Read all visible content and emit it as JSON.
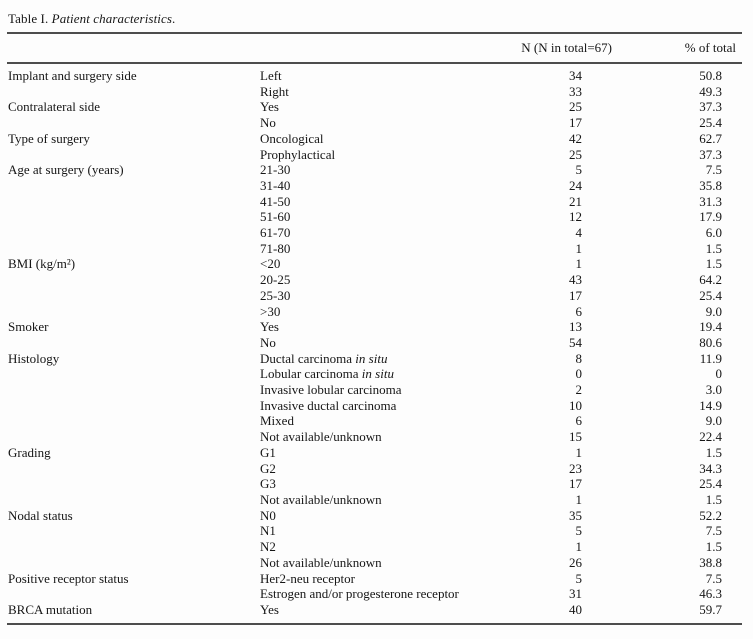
{
  "title": {
    "prefix": "Table I.",
    "italic": " Patient characteristics",
    "suffix": "."
  },
  "table": {
    "headers": {
      "category": "",
      "subcategory": "",
      "n": "N (N in total=67)",
      "pct": "% of total"
    },
    "rows": [
      {
        "category": "Implant and surgery side",
        "label": "Left",
        "n": "34",
        "pct": "50.8"
      },
      {
        "category": "",
        "label": "Right",
        "n": "33",
        "pct": "49.3"
      },
      {
        "category": "Contralateral side",
        "label": "Yes",
        "n": "25",
        "pct": "37.3"
      },
      {
        "category": "",
        "label": "No",
        "n": "17",
        "pct": "25.4"
      },
      {
        "category": "Type of surgery",
        "label": "Oncological",
        "n": "42",
        "pct": "62.7"
      },
      {
        "category": "",
        "label": "Prophylactical",
        "n": "25",
        "pct": "37.3"
      },
      {
        "category": "Age at surgery (years)",
        "label": "21-30",
        "n": "5",
        "pct": "7.5"
      },
      {
        "category": "",
        "label": "31-40",
        "n": "24",
        "pct": "35.8"
      },
      {
        "category": "",
        "label": "41-50",
        "n": "21",
        "pct": "31.3"
      },
      {
        "category": "",
        "label": "51-60",
        "n": "12",
        "pct": "17.9"
      },
      {
        "category": "",
        "label": "61-70",
        "n": "4",
        "pct": "6.0"
      },
      {
        "category": "",
        "label": "71-80",
        "n": "1",
        "pct": "1.5"
      },
      {
        "category": "BMI (kg/m²)",
        "label": "<20",
        "n": "1",
        "pct": "1.5"
      },
      {
        "category": "",
        "label": "20-25",
        "n": "43",
        "pct": "64.2"
      },
      {
        "category": "",
        "label": "25-30",
        "n": "17",
        "pct": "25.4"
      },
      {
        "category": "",
        "label": ">30",
        "n": "6",
        "pct": "9.0"
      },
      {
        "category": "Smoker",
        "label": "Yes",
        "n": "13",
        "pct": "19.4"
      },
      {
        "category": "",
        "label": "No",
        "n": "54",
        "pct": "80.6"
      },
      {
        "category": "Histology",
        "label": "Ductal carcinoma",
        "label_italic": " in situ",
        "n": "8",
        "pct": "11.9"
      },
      {
        "category": "",
        "label": "Lobular carcinoma",
        "label_italic": " in situ",
        "n": "0",
        "pct": "0"
      },
      {
        "category": "",
        "label": "Invasive lobular carcinoma",
        "n": "2",
        "pct": "3.0"
      },
      {
        "category": "",
        "label": "Invasive ductal carcinoma",
        "n": "10",
        "pct": "14.9"
      },
      {
        "category": "",
        "label": "Mixed",
        "n": "6",
        "pct": "9.0"
      },
      {
        "category": "",
        "label": "Not available/unknown",
        "n": "15",
        "pct": "22.4"
      },
      {
        "category": "Grading",
        "label": "G1",
        "n": "1",
        "pct": "1.5"
      },
      {
        "category": "",
        "label": "G2",
        "n": "23",
        "pct": "34.3"
      },
      {
        "category": "",
        "label": "G3",
        "n": "17",
        "pct": "25.4"
      },
      {
        "category": "",
        "label": "Not available/unknown",
        "n": "1",
        "pct": "1.5"
      },
      {
        "category": "Nodal status",
        "label": "N0",
        "n": "35",
        "pct": "52.2"
      },
      {
        "category": "",
        "label": "N1",
        "n": "5",
        "pct": "7.5"
      },
      {
        "category": "",
        "label": "N2",
        "n": "1",
        "pct": "1.5"
      },
      {
        "category": "",
        "label": "Not available/unknown",
        "n": "26",
        "pct": "38.8"
      },
      {
        "category": "Positive receptor status",
        "label": "Her2-neu receptor",
        "n": "5",
        "pct": "7.5"
      },
      {
        "category": "",
        "label": "Estrogen and/or progesterone receptor",
        "n": "31",
        "pct": "46.3"
      },
      {
        "category": "BRCA mutation",
        "label": "Yes",
        "n": "40",
        "pct": "59.7"
      }
    ]
  }
}
